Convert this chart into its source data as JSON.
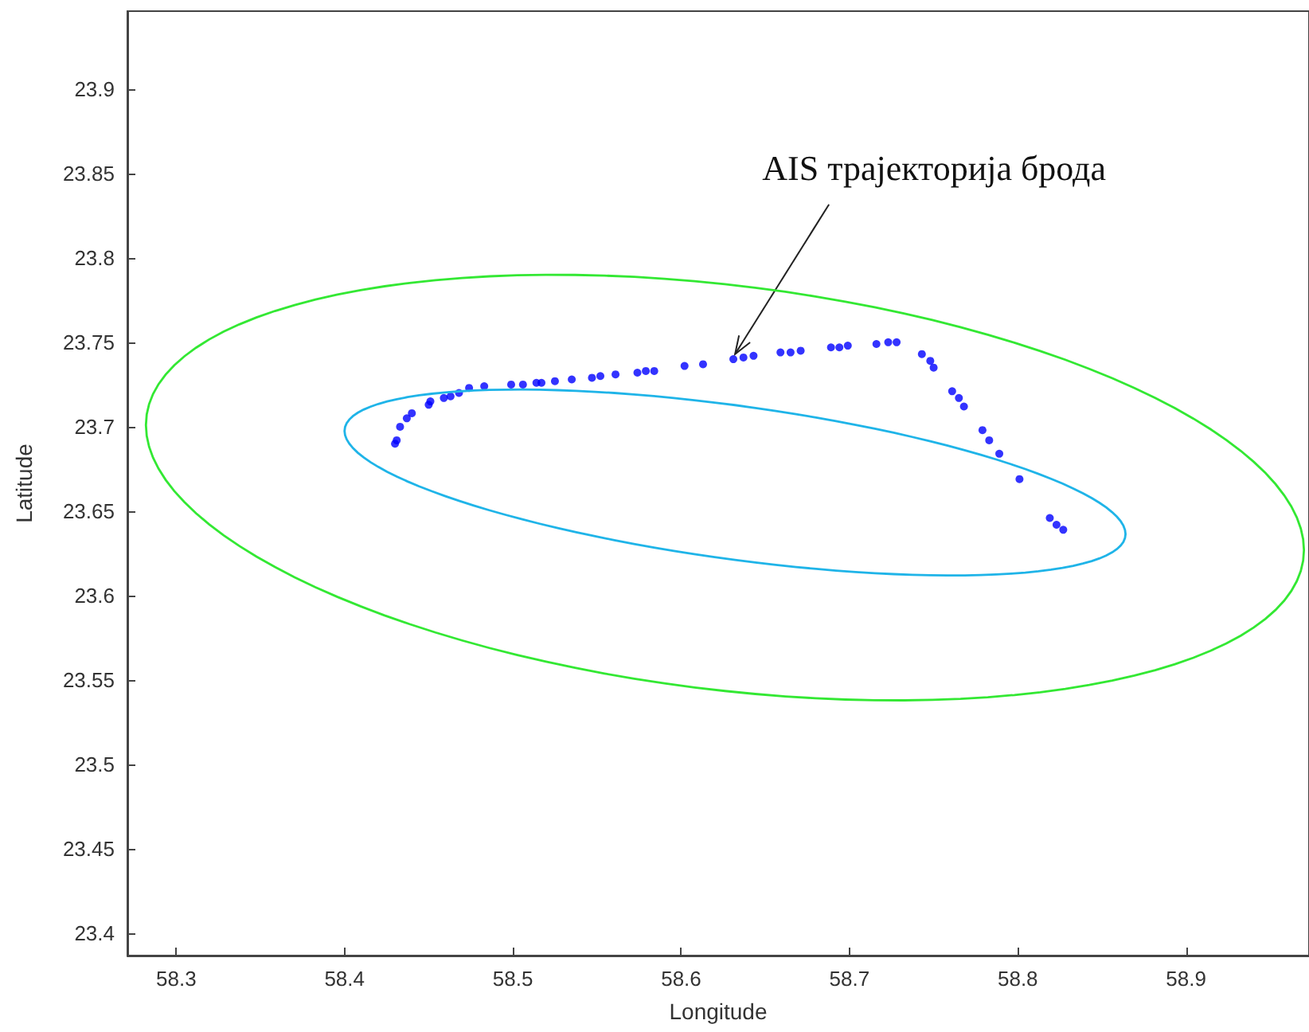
{
  "chart_data": {
    "type": "scatter",
    "xlabel": "Longitude",
    "ylabel": "Latitude",
    "xlim": [
      58.271,
      58.973
    ],
    "ylim": [
      23.387,
      23.946
    ],
    "xticks": [
      58.3,
      58.4,
      58.5,
      58.6,
      58.7,
      58.8,
      58.9
    ],
    "yticks": [
      23.4,
      23.45,
      23.5,
      23.55,
      23.6,
      23.65,
      23.7,
      23.75,
      23.8,
      23.85,
      23.9
    ],
    "grid": false,
    "annotations": [
      {
        "text": "AIS трајекторија брода",
        "x": 58.632,
        "y": 23.743
      }
    ],
    "series": [
      {
        "marker": "circle",
        "color": "#0000ff",
        "x": [
          58.43,
          58.431,
          58.433,
          58.437,
          58.44,
          58.45,
          58.451,
          58.459,
          58.463,
          58.468,
          58.474,
          58.483,
          58.499,
          58.506,
          58.514,
          58.517,
          58.525,
          58.535,
          58.547,
          58.552,
          58.561,
          58.574,
          58.579,
          58.584,
          58.602,
          58.613,
          58.631,
          58.637,
          58.643,
          58.659,
          58.665,
          58.671,
          58.689,
          58.694,
          58.699,
          58.716,
          58.723,
          58.728,
          58.743,
          58.748,
          58.75,
          58.761,
          58.765,
          58.768,
          58.779,
          58.783,
          58.789,
          58.801,
          58.819,
          58.823,
          58.827
        ],
        "values": [
          23.69,
          23.692,
          23.7,
          23.705,
          23.708,
          23.713,
          23.715,
          23.717,
          23.718,
          23.72,
          23.723,
          23.724,
          23.725,
          23.725,
          23.726,
          23.726,
          23.727,
          23.728,
          23.729,
          23.73,
          23.731,
          23.732,
          23.733,
          23.733,
          23.736,
          23.737,
          23.74,
          23.741,
          23.742,
          23.744,
          23.744,
          23.745,
          23.747,
          23.747,
          23.748,
          23.749,
          23.75,
          23.75,
          23.743,
          23.739,
          23.735,
          23.721,
          23.717,
          23.712,
          23.698,
          23.692,
          23.684,
          23.669,
          23.646,
          23.642,
          23.639
        ]
      }
    ]
  }
}
